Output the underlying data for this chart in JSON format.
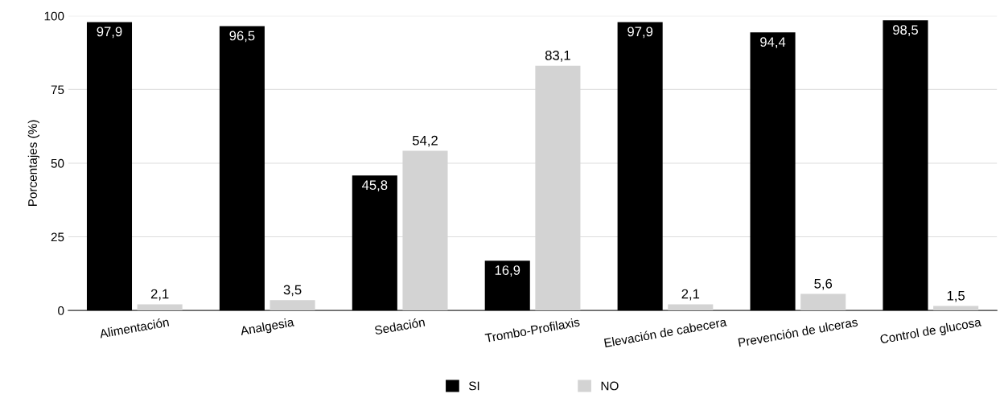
{
  "chart_data": {
    "type": "bar",
    "ylabel": "Porcentajes (%)",
    "categories": [
      "Alimentación",
      "Analgesia",
      "Sedación",
      "Trombo-Profilaxis",
      "Elevación de cabecera",
      "Prevención de ulceras",
      "Control de glucosa"
    ],
    "series": [
      {
        "name": "SI",
        "color": "#000000",
        "values": [
          97.9,
          96.5,
          45.8,
          16.9,
          97.9,
          94.4,
          98.5
        ],
        "value_labels": [
          "97,9",
          "96,5",
          "45,8",
          "16,9",
          "97,9",
          "94,4",
          "98,5"
        ]
      },
      {
        "name": "NO",
        "color": "#d3d3d3",
        "values": [
          2.1,
          3.5,
          54.2,
          83.1,
          2.1,
          5.6,
          1.5
        ],
        "value_labels": [
          "2,1",
          "3,5",
          "54,2",
          "83,1",
          "2,1",
          "5,6",
          "1,5"
        ]
      }
    ],
    "ylim": [
      0,
      100
    ],
    "yticks": [
      0,
      25,
      50,
      75,
      100
    ],
    "grid": "y",
    "legend": "bottom"
  }
}
